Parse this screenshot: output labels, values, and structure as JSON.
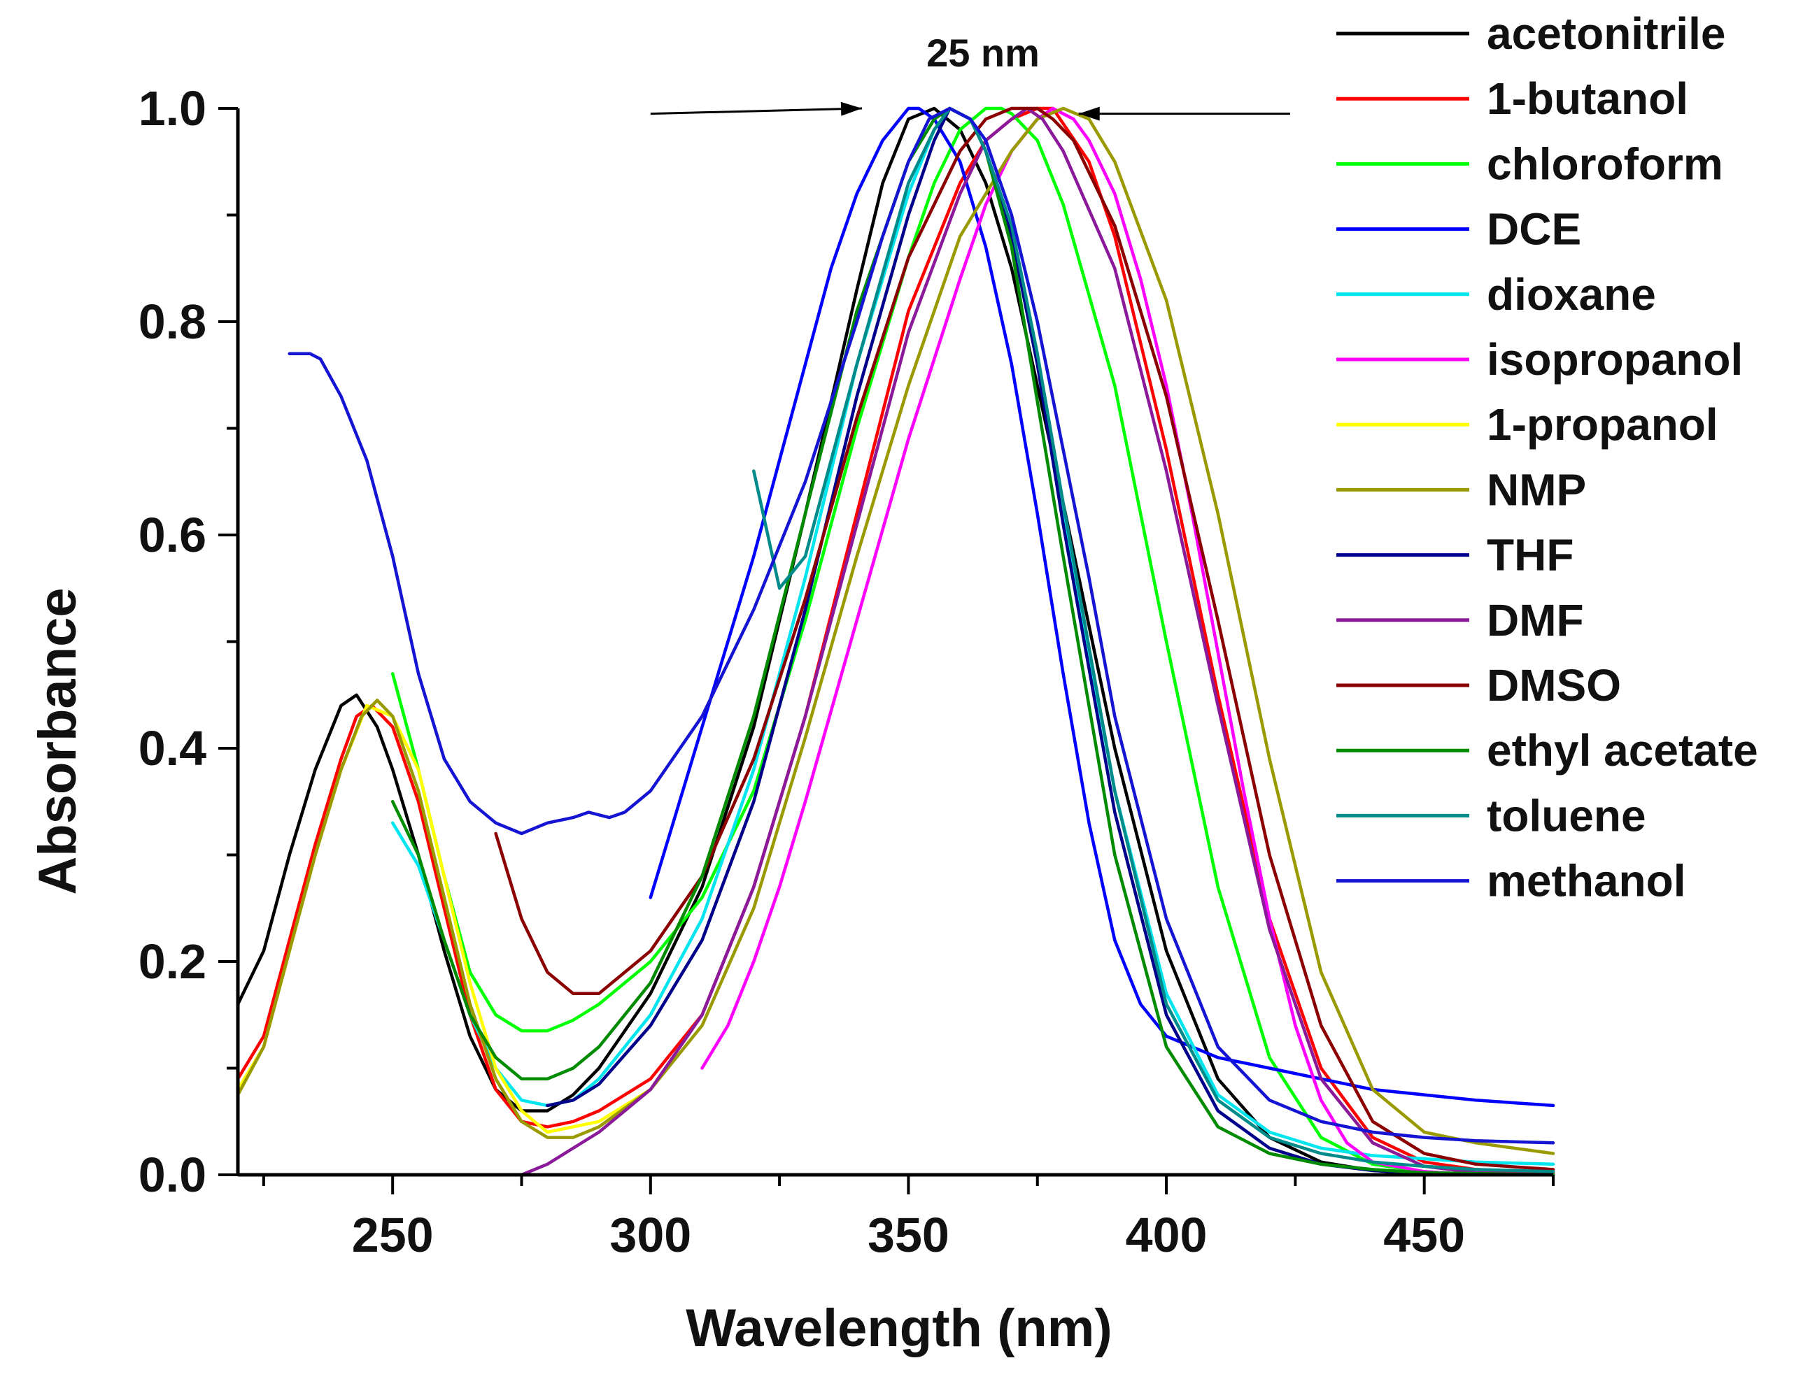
{
  "chart_data": {
    "type": "line",
    "title": "",
    "xlabel": "Wavelength (nm)",
    "ylabel": "Absorbance",
    "xlim": [
      220,
      475
    ],
    "ylim": [
      0.0,
      1.0
    ],
    "xticks": [
      250,
      300,
      350,
      400,
      450
    ],
    "xtick_labels": [
      "250",
      "300",
      "350",
      "400",
      "450"
    ],
    "yticks": [
      0.0,
      0.2,
      0.4,
      0.6,
      0.8,
      1.0
    ],
    "ytick_labels": [
      "0.0",
      "0.2",
      "0.4",
      "0.6",
      "0.8",
      "1.0"
    ],
    "grid": false,
    "legend_position": "top-right",
    "annotation": {
      "text": "25 nm",
      "arrow_left_from": [
        300,
        0.995
      ],
      "arrow_left_to": [
        341,
        1.0
      ],
      "arrow_right_from": [
        424,
        0.995
      ],
      "arrow_right_to": [
        383,
        0.995
      ]
    },
    "series": [
      {
        "name": "acetonitrile",
        "color": "#000000",
        "x": [
          220,
          225,
          230,
          235,
          240,
          243,
          247,
          250,
          255,
          260,
          265,
          270,
          275,
          280,
          285,
          290,
          300,
          310,
          320,
          330,
          340,
          345,
          350,
          355,
          360,
          365,
          370,
          380,
          390,
          400,
          410,
          420,
          430,
          440,
          450,
          460,
          475
        ],
        "y": [
          0.16,
          0.21,
          0.3,
          0.38,
          0.44,
          0.45,
          0.42,
          0.38,
          0.3,
          0.21,
          0.13,
          0.08,
          0.06,
          0.06,
          0.075,
          0.1,
          0.17,
          0.27,
          0.42,
          0.62,
          0.83,
          0.93,
          0.99,
          1.0,
          0.98,
          0.93,
          0.85,
          0.63,
          0.4,
          0.21,
          0.09,
          0.035,
          0.012,
          0.004,
          0.001,
          0.0,
          0.0
        ]
      },
      {
        "name": "1-butanol",
        "color": "#ff0000",
        "x": [
          220,
          225,
          230,
          235,
          240,
          243,
          246,
          250,
          255,
          260,
          265,
          270,
          275,
          280,
          285,
          290,
          300,
          310,
          320,
          330,
          340,
          350,
          360,
          365,
          370,
          375,
          378,
          385,
          390,
          400,
          410,
          420,
          430,
          440,
          450,
          460,
          475
        ],
        "y": [
          0.09,
          0.13,
          0.22,
          0.31,
          0.39,
          0.43,
          0.44,
          0.42,
          0.35,
          0.25,
          0.15,
          0.08,
          0.05,
          0.045,
          0.05,
          0.06,
          0.09,
          0.15,
          0.27,
          0.43,
          0.62,
          0.81,
          0.93,
          0.97,
          0.99,
          1.0,
          1.0,
          0.95,
          0.88,
          0.68,
          0.45,
          0.24,
          0.1,
          0.035,
          0.012,
          0.005,
          0.002
        ]
      },
      {
        "name": "chloroform",
        "color": "#00ff00",
        "x": [
          250,
          255,
          260,
          265,
          270,
          275,
          280,
          285,
          290,
          300,
          310,
          320,
          330,
          340,
          350,
          355,
          360,
          365,
          368,
          370,
          375,
          380,
          390,
          400,
          410,
          420,
          430,
          440,
          450,
          460,
          475
        ],
        "y": [
          0.47,
          0.38,
          0.28,
          0.19,
          0.15,
          0.135,
          0.135,
          0.145,
          0.16,
          0.2,
          0.26,
          0.36,
          0.52,
          0.7,
          0.86,
          0.93,
          0.98,
          1.0,
          1.0,
          0.995,
          0.97,
          0.91,
          0.74,
          0.5,
          0.27,
          0.11,
          0.035,
          0.01,
          0.003,
          0.0,
          0.0
        ]
      },
      {
        "name": "DCE",
        "color": "#0000ff",
        "x": [
          300,
          305,
          310,
          315,
          320,
          325,
          330,
          335,
          340,
          345,
          350,
          352,
          355,
          360,
          365,
          370,
          375,
          380,
          385,
          390,
          395,
          400,
          410,
          420,
          430,
          440,
          450,
          460,
          475
        ],
        "y": [
          0.26,
          0.34,
          0.42,
          0.5,
          0.58,
          0.67,
          0.76,
          0.85,
          0.92,
          0.97,
          1.0,
          1.0,
          0.99,
          0.95,
          0.87,
          0.76,
          0.62,
          0.47,
          0.33,
          0.22,
          0.16,
          0.13,
          0.11,
          0.1,
          0.09,
          0.08,
          0.075,
          0.07,
          0.065
        ]
      },
      {
        "name": "dioxane",
        "color": "#00e5ee",
        "x": [
          250,
          255,
          260,
          265,
          270,
          275,
          280,
          285,
          290,
          300,
          310,
          320,
          330,
          340,
          350,
          355,
          358,
          362,
          365,
          370,
          375,
          380,
          390,
          400,
          410,
          420,
          430,
          440,
          450,
          460,
          475
        ],
        "y": [
          0.33,
          0.29,
          0.22,
          0.15,
          0.1,
          0.07,
          0.065,
          0.07,
          0.09,
          0.15,
          0.24,
          0.38,
          0.56,
          0.76,
          0.92,
          0.98,
          1.0,
          0.99,
          0.96,
          0.88,
          0.76,
          0.62,
          0.36,
          0.17,
          0.075,
          0.04,
          0.025,
          0.018,
          0.015,
          0.012,
          0.01
        ]
      },
      {
        "name": "isopropanol",
        "color": "#ff00ff",
        "x": [
          310,
          315,
          320,
          325,
          330,
          340,
          350,
          360,
          365,
          370,
          375,
          378,
          382,
          385,
          390,
          395,
          400,
          405,
          410,
          415,
          420,
          425,
          430,
          435,
          440,
          450,
          460,
          475
        ],
        "y": [
          0.1,
          0.14,
          0.2,
          0.27,
          0.35,
          0.52,
          0.69,
          0.84,
          0.91,
          0.96,
          0.99,
          1.0,
          0.99,
          0.97,
          0.92,
          0.84,
          0.74,
          0.62,
          0.49,
          0.36,
          0.24,
          0.14,
          0.07,
          0.03,
          0.012,
          0.003,
          0.0,
          0.0
        ]
      },
      {
        "name": "1-propanol",
        "color": "#ffff00",
        "x": [
          220,
          225,
          230,
          235,
          240,
          245,
          250,
          255,
          260,
          265,
          270,
          275,
          280,
          290,
          300
        ],
        "y": [
          0.08,
          0.12,
          0.21,
          0.3,
          0.38,
          0.44,
          0.43,
          0.38,
          0.28,
          0.18,
          0.1,
          0.06,
          0.04,
          0.05,
          0.08
        ]
      },
      {
        "name": "NMP",
        "color": "#999900",
        "x": [
          220,
          225,
          230,
          235,
          240,
          244,
          247,
          250,
          255,
          260,
          265,
          270,
          275,
          280,
          285,
          290,
          300,
          310,
          320,
          330,
          340,
          350,
          360,
          370,
          375,
          380,
          385,
          390,
          400,
          410,
          420,
          430,
          440,
          450,
          460,
          475
        ],
        "y": [
          0.075,
          0.12,
          0.21,
          0.3,
          0.38,
          0.43,
          0.445,
          0.43,
          0.36,
          0.26,
          0.16,
          0.09,
          0.05,
          0.035,
          0.035,
          0.045,
          0.08,
          0.14,
          0.25,
          0.41,
          0.58,
          0.74,
          0.88,
          0.96,
          0.99,
          1.0,
          0.99,
          0.95,
          0.82,
          0.62,
          0.39,
          0.19,
          0.08,
          0.04,
          0.03,
          0.02
        ]
      },
      {
        "name": "THF",
        "color": "#00008b",
        "x": [
          280,
          285,
          290,
          300,
          310,
          320,
          330,
          340,
          350,
          355,
          358,
          362,
          365,
          370,
          375,
          380,
          390,
          400,
          410,
          420,
          430,
          440,
          450,
          460,
          475
        ],
        "y": [
          0.065,
          0.07,
          0.085,
          0.14,
          0.22,
          0.35,
          0.53,
          0.73,
          0.9,
          0.97,
          1.0,
          0.99,
          0.96,
          0.88,
          0.76,
          0.61,
          0.34,
          0.15,
          0.06,
          0.025,
          0.01,
          0.004,
          0.002,
          0.0,
          0.0
        ]
      },
      {
        "name": "DMF",
        "color": "#8b1a9a",
        "x": [
          275,
          280,
          285,
          290,
          300,
          310,
          320,
          330,
          340,
          350,
          360,
          365,
          370,
          373,
          376,
          380,
          390,
          400,
          410,
          420,
          430,
          440,
          450,
          460,
          475
        ],
        "y": [
          0.0,
          0.01,
          0.025,
          0.04,
          0.08,
          0.15,
          0.27,
          0.43,
          0.61,
          0.79,
          0.92,
          0.97,
          0.99,
          1.0,
          0.99,
          0.96,
          0.85,
          0.66,
          0.44,
          0.23,
          0.09,
          0.03,
          0.008,
          0.002,
          0.0
        ]
      },
      {
        "name": "DMSO",
        "color": "#8b0000",
        "x": [
          270,
          275,
          280,
          285,
          290,
          300,
          310,
          320,
          330,
          340,
          350,
          360,
          365,
          370,
          375,
          378,
          382,
          385,
          390,
          400,
          410,
          420,
          430,
          440,
          450,
          460,
          475
        ],
        "y": [
          0.32,
          0.24,
          0.19,
          0.17,
          0.17,
          0.21,
          0.28,
          0.39,
          0.54,
          0.71,
          0.86,
          0.96,
          0.99,
          1.0,
          1.0,
          0.99,
          0.97,
          0.94,
          0.89,
          0.73,
          0.52,
          0.3,
          0.14,
          0.05,
          0.02,
          0.01,
          0.005
        ]
      },
      {
        "name": "ethyl acetate",
        "color": "#008b00",
        "x": [
          250,
          255,
          260,
          265,
          270,
          275,
          280,
          285,
          290,
          300,
          310,
          320,
          330,
          340,
          350,
          355,
          358,
          362,
          365,
          370,
          380,
          390,
          400,
          410,
          420,
          430,
          440,
          450,
          475
        ],
        "y": [
          0.35,
          0.3,
          0.22,
          0.15,
          0.11,
          0.09,
          0.09,
          0.1,
          0.12,
          0.18,
          0.28,
          0.43,
          0.62,
          0.81,
          0.95,
          0.99,
          1.0,
          0.99,
          0.96,
          0.87,
          0.58,
          0.3,
          0.12,
          0.045,
          0.02,
          0.01,
          0.005,
          0.002,
          0.0
        ]
      },
      {
        "name": "toluene",
        "color": "#008b8b",
        "x": [
          320,
          325,
          330,
          340,
          350,
          355,
          358,
          362,
          365,
          370,
          375,
          380,
          390,
          400,
          410,
          420,
          430,
          440,
          450,
          460,
          475
        ],
        "y": [
          0.66,
          0.55,
          0.58,
          0.76,
          0.93,
          0.98,
          1.0,
          0.99,
          0.96,
          0.89,
          0.77,
          0.63,
          0.36,
          0.16,
          0.07,
          0.035,
          0.02,
          0.012,
          0.008,
          0.005,
          0.003
        ]
      },
      {
        "name": "methanol",
        "color": "#1414d2",
        "x": [
          230,
          234,
          236,
          240,
          245,
          250,
          255,
          260,
          265,
          270,
          275,
          280,
          285,
          288,
          292,
          295,
          300,
          310,
          320,
          330,
          340,
          345,
          350,
          354,
          358,
          362,
          365,
          370,
          375,
          380,
          385,
          390,
          400,
          410,
          420,
          430,
          440,
          450,
          460,
          475
        ],
        "y": [
          0.77,
          0.77,
          0.765,
          0.73,
          0.67,
          0.58,
          0.47,
          0.39,
          0.35,
          0.33,
          0.32,
          0.33,
          0.335,
          0.34,
          0.335,
          0.34,
          0.36,
          0.43,
          0.53,
          0.65,
          0.8,
          0.88,
          0.95,
          0.99,
          1.0,
          0.99,
          0.97,
          0.9,
          0.8,
          0.68,
          0.56,
          0.43,
          0.24,
          0.12,
          0.07,
          0.05,
          0.04,
          0.035,
          0.032,
          0.03
        ]
      }
    ]
  }
}
